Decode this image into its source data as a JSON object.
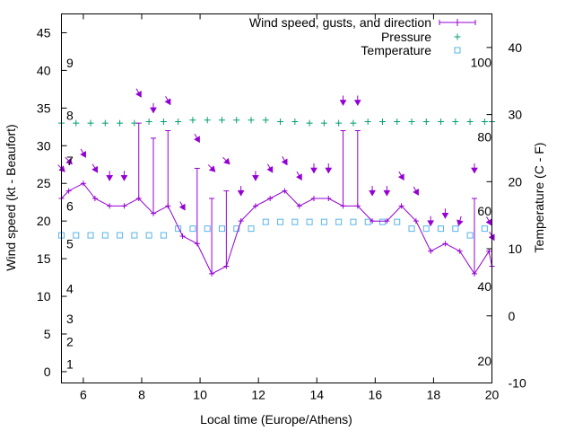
{
  "colors": {
    "wind": "#9400d3",
    "pressure": "#009e73",
    "temperature": "#56b4e9",
    "axis": "#000000",
    "background": "#ffffff"
  },
  "chart_data": {
    "type": "line",
    "title": "",
    "xlabel": "Local time (Europe/Athens)",
    "ylabel": "Wind speed (kt - Beaufort)",
    "y2label": "Temperature (C - F)",
    "xlim": [
      5.25,
      20
    ],
    "ylim": [
      -1.5,
      47.5
    ],
    "y2lim": [
      -10,
      45
    ],
    "grid": false,
    "legend_position": "top-right",
    "x_ticks": [
      6,
      8,
      10,
      12,
      14,
      16,
      18,
      20
    ],
    "y_ticks": [
      0,
      5,
      10,
      15,
      20,
      25,
      30,
      35,
      40,
      45
    ],
    "y2_ticks": [
      -10,
      0,
      10,
      20,
      30,
      40
    ],
    "beaufort_labels": [
      {
        "label": "1",
        "kt": 1
      },
      {
        "label": "2",
        "kt": 4
      },
      {
        "label": "3",
        "kt": 7
      },
      {
        "label": "4",
        "kt": 11
      },
      {
        "label": "5",
        "kt": 17
      },
      {
        "label": "6",
        "kt": 22
      },
      {
        "label": "7",
        "kt": 28
      },
      {
        "label": "8",
        "kt": 34
      },
      {
        "label": "9",
        "kt": 41
      }
    ],
    "fahrenheit_labels": [
      {
        "label": "20",
        "celsius": -6.7
      },
      {
        "label": "40",
        "celsius": 4.4
      },
      {
        "label": "60",
        "celsius": 15.6
      },
      {
        "label": "80",
        "celsius": 26.7
      },
      {
        "label": "100",
        "celsius": 37.8
      }
    ],
    "legend": [
      {
        "label": "Wind speed, gusts, and direction",
        "series": "wind"
      },
      {
        "label": "Pressure",
        "series": "pressure"
      },
      {
        "label": "Temperature",
        "series": "temperature"
      }
    ],
    "wind": {
      "name": "Wind speed, gusts, and direction",
      "points": [
        {
          "x": 5.25,
          "speed": 23,
          "gust": 23,
          "dir": 315
        },
        {
          "x": 5.5,
          "speed": 24,
          "gust": 24,
          "dir": 315
        },
        {
          "x": 6.0,
          "speed": 25,
          "gust": 25,
          "dir": 330
        },
        {
          "x": 6.4,
          "speed": 23,
          "gust": 23,
          "dir": 330
        },
        {
          "x": 6.9,
          "speed": 22,
          "gust": 22,
          "dir": 0
        },
        {
          "x": 7.4,
          "speed": 22,
          "gust": 22,
          "dir": 0
        },
        {
          "x": 7.9,
          "speed": 23,
          "gust": 33,
          "dir": 330
        },
        {
          "x": 8.4,
          "speed": 21,
          "gust": 31,
          "dir": 0
        },
        {
          "x": 8.9,
          "speed": 22,
          "gust": 32,
          "dir": 330
        },
        {
          "x": 9.4,
          "speed": 18,
          "gust": 18,
          "dir": 330
        },
        {
          "x": 9.9,
          "speed": 17,
          "gust": 27,
          "dir": 330
        },
        {
          "x": 10.4,
          "speed": 13,
          "gust": 23,
          "dir": 315
        },
        {
          "x": 10.9,
          "speed": 14,
          "gust": 24,
          "dir": 315
        },
        {
          "x": 11.4,
          "speed": 20,
          "gust": 20,
          "dir": 0
        },
        {
          "x": 11.9,
          "speed": 22,
          "gust": 22,
          "dir": 0
        },
        {
          "x": 12.4,
          "speed": 23,
          "gust": 23,
          "dir": 330
        },
        {
          "x": 12.9,
          "speed": 24,
          "gust": 24,
          "dir": 330
        },
        {
          "x": 13.4,
          "speed": 22,
          "gust": 22,
          "dir": 330
        },
        {
          "x": 13.9,
          "speed": 23,
          "gust": 23,
          "dir": 0
        },
        {
          "x": 14.4,
          "speed": 23,
          "gust": 23,
          "dir": 0
        },
        {
          "x": 14.9,
          "speed": 22,
          "gust": 32,
          "dir": 0
        },
        {
          "x": 15.4,
          "speed": 22,
          "gust": 32,
          "dir": 0
        },
        {
          "x": 15.9,
          "speed": 20,
          "gust": 20,
          "dir": 0
        },
        {
          "x": 16.4,
          "speed": 20,
          "gust": 20,
          "dir": 0
        },
        {
          "x": 16.9,
          "speed": 22,
          "gust": 22,
          "dir": 330
        },
        {
          "x": 17.4,
          "speed": 20,
          "gust": 20,
          "dir": 330
        },
        {
          "x": 17.9,
          "speed": 16,
          "gust": 16,
          "dir": 0
        },
        {
          "x": 18.4,
          "speed": 17,
          "gust": 17,
          "dir": 0
        },
        {
          "x": 18.9,
          "speed": 16,
          "gust": 16,
          "dir": 15
        },
        {
          "x": 19.4,
          "speed": 13,
          "gust": 23,
          "dir": 0
        },
        {
          "x": 19.9,
          "speed": 16,
          "gust": 16,
          "dir": 330
        },
        {
          "x": 20.0,
          "speed": 14,
          "gust": 14,
          "dir": 330
        }
      ]
    },
    "pressure": {
      "name": "Pressure",
      "x": [
        5.25,
        5.75,
        6.25,
        6.75,
        7.25,
        7.75,
        8.25,
        8.75,
        9.25,
        9.75,
        10.25,
        10.75,
        11.25,
        11.75,
        12.25,
        12.75,
        13.25,
        13.75,
        14.25,
        14.75,
        15.25,
        15.75,
        16.25,
        16.75,
        17.25,
        17.75,
        18.25,
        18.75,
        19.25,
        19.75,
        20.0
      ],
      "y": [
        33,
        33,
        33,
        33,
        33,
        33,
        33.2,
        33.2,
        33.2,
        33.4,
        33.4,
        33.4,
        33.4,
        33.4,
        33.4,
        33.2,
        33.2,
        33,
        33,
        33,
        33,
        33.2,
        33.2,
        33.2,
        33.2,
        33.2,
        33.2,
        33.2,
        33.2,
        33.2,
        33.2
      ]
    },
    "temperature": {
      "name": "Temperature",
      "x": [
        5.25,
        5.75,
        6.25,
        6.75,
        7.25,
        7.75,
        8.25,
        8.75,
        9.25,
        9.75,
        10.25,
        10.75,
        11.25,
        11.75,
        12.25,
        12.75,
        13.25,
        13.75,
        14.25,
        14.75,
        15.25,
        15.75,
        16.25,
        16.75,
        17.25,
        17.75,
        18.25,
        18.75,
        19.25,
        19.75
      ],
      "y": [
        12,
        12,
        12,
        12,
        12,
        12,
        12,
        12,
        13,
        13,
        13,
        13,
        13,
        13,
        14,
        14,
        14,
        14,
        14,
        14,
        14,
        14,
        14,
        14,
        13,
        13,
        13,
        13,
        12,
        13
      ]
    }
  }
}
